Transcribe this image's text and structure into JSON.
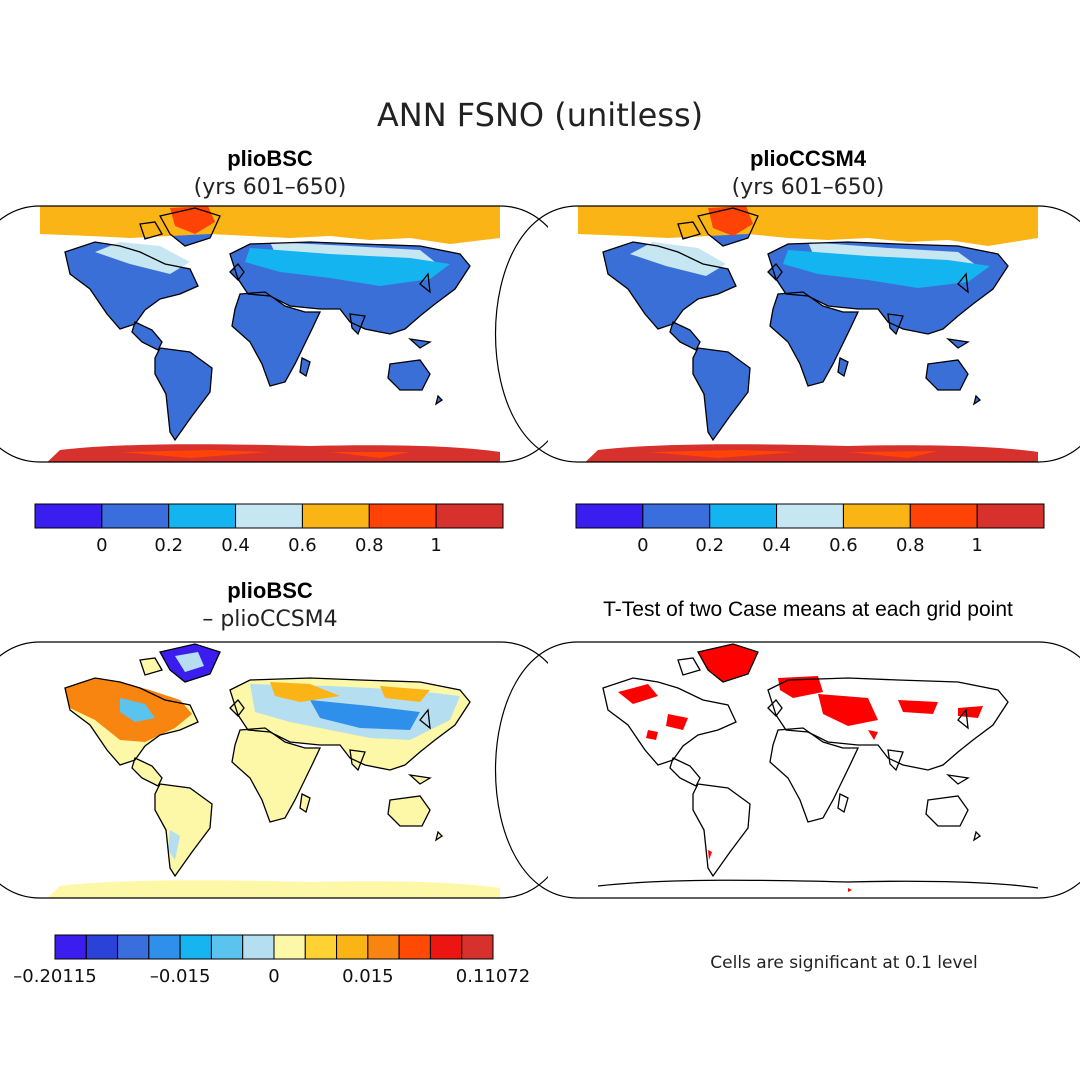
{
  "figure": {
    "main_title": "ANN FSNO (unitless)",
    "note": "Cells are significant at 0.1 level"
  },
  "colors": {
    "land_base": "#3b6fd8",
    "ocean": "#ffffff",
    "outline": "#000000",
    "signif": "#ff0000"
  },
  "chart_data": [
    {
      "type": "heatmap",
      "name": "panel-pliobsc",
      "title": "plioBSC",
      "subtitle": "(yrs 601–650)",
      "projection": "Robinson world map",
      "colorbar": {
        "colors": [
          "#3a1eef",
          "#3a6edd",
          "#14b4f0",
          "#c6e6f2",
          "#fbb416",
          "#ff4206",
          "#d6312c"
        ],
        "levels": [
          0,
          0.2,
          0.4,
          0.6,
          0.8,
          1
        ],
        "tick_labels": [
          "0",
          "0.2",
          "0.4",
          "0.6",
          "0.8",
          "1"
        ]
      }
    },
    {
      "type": "heatmap",
      "name": "panel-plioccsm4",
      "title": "plioCCSM4",
      "subtitle": "(yrs 601–650)",
      "projection": "Robinson world map",
      "colorbar": {
        "colors": [
          "#3a1eef",
          "#3a6edd",
          "#14b4f0",
          "#c6e6f2",
          "#fbb416",
          "#ff4206",
          "#d6312c"
        ],
        "levels": [
          0,
          0.2,
          0.4,
          0.6,
          0.8,
          1
        ],
        "tick_labels": [
          "0",
          "0.2",
          "0.4",
          "0.6",
          "0.8",
          "1"
        ]
      }
    },
    {
      "type": "heatmap",
      "name": "panel-difference",
      "title": "plioBSC",
      "subtitle": "– plioCCSM4",
      "projection": "Robinson world map",
      "colorbar": {
        "colors": [
          "#3c1df0",
          "#2a42d8",
          "#3a6edd",
          "#2e90ea",
          "#16b4f0",
          "#5ac4ef",
          "#b6def1",
          "#fdf7a8",
          "#fdd232",
          "#fbb416",
          "#f88510",
          "#ff4a06",
          "#ec1511",
          "#d6312c"
        ],
        "tick_labels": [
          "–0.20115",
          "–0.015",
          "0",
          "0.015",
          "0.11072"
        ]
      }
    },
    {
      "type": "heatmap",
      "name": "panel-ttest",
      "title": "T-Test of two Case means at each grid point",
      "projection": "Robinson world map"
    }
  ]
}
